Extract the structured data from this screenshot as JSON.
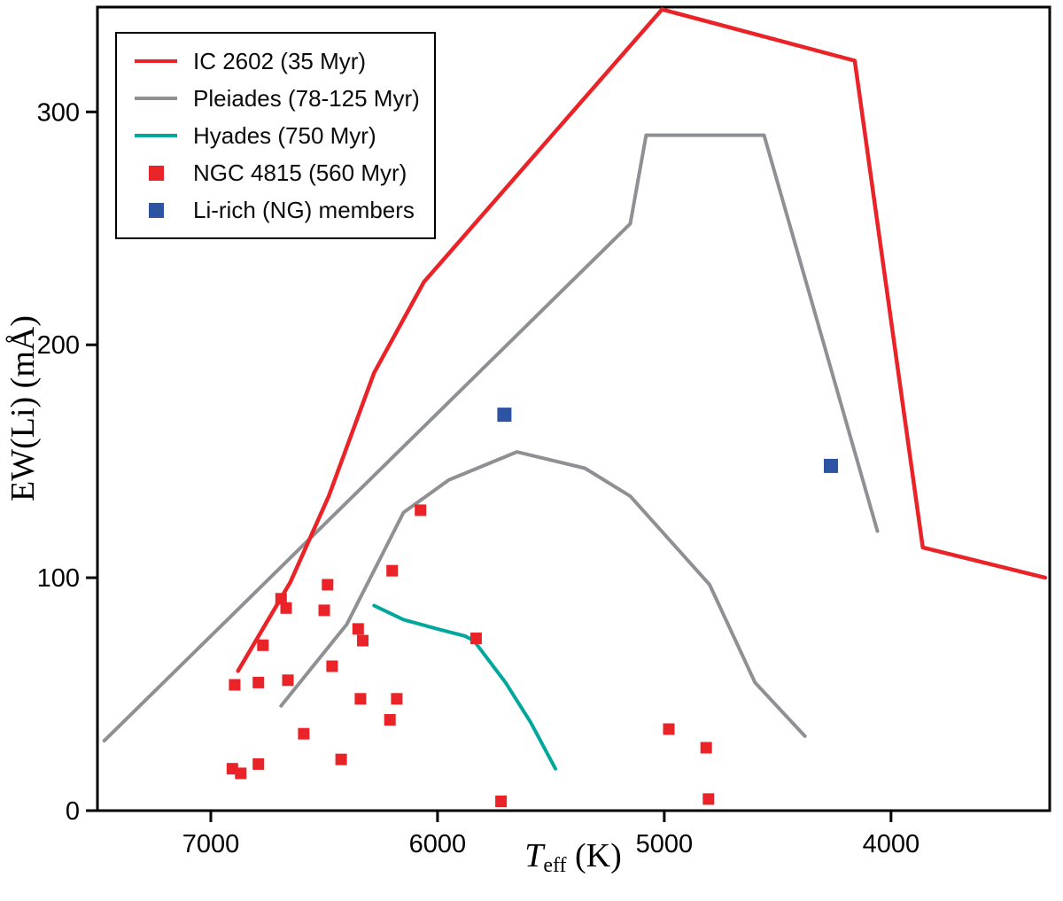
{
  "chart_data": {
    "type": "line+scatter",
    "title": "",
    "xlabel": {
      "symbol": "T",
      "subscript": "eff",
      "unit": "(K)"
    },
    "ylabel": "EW(Li) (mÅ)",
    "x_domain": [
      7500,
      3300
    ],
    "x_axis_reversed": true,
    "y_domain": [
      0,
      345
    ],
    "x_ticks": [
      "7000",
      "6000",
      "5000",
      "4000"
    ],
    "y_ticks": [
      "0",
      "100",
      "200",
      "300"
    ],
    "grid": false,
    "legend_position": "top-left",
    "axis_color": "#000000",
    "series": [
      {
        "id": "ic2602",
        "name": "IC 2602 (35 Myr)",
        "type": "line",
        "color": "#ea2328",
        "segments": [
          [
            [
              6880,
              60
            ],
            [
              6650,
              98
            ],
            [
              6480,
              135
            ],
            [
              6280,
              188
            ],
            [
              6060,
              227
            ],
            [
              5010,
              344
            ],
            [
              4160,
              322
            ],
            [
              3860,
              113
            ],
            [
              3320,
              100
            ]
          ]
        ]
      },
      {
        "id": "pleiades",
        "name": "Pleiades (78-125 Myr)",
        "type": "line",
        "color": "#8e9093",
        "segments": [
          [
            [
              7470,
              30
            ],
            [
              5150,
              252
            ],
            [
              5080,
              290
            ],
            [
              4560,
              290
            ],
            [
              4060,
              120
            ]
          ],
          [
            [
              6690,
              45
            ],
            [
              6400,
              80
            ],
            [
              6150,
              128
            ],
            [
              5950,
              142
            ],
            [
              5650,
              154
            ],
            [
              5350,
              147
            ],
            [
              5150,
              135
            ],
            [
              4800,
              97
            ],
            [
              4600,
              55
            ],
            [
              4380,
              32
            ]
          ]
        ]
      },
      {
        "id": "hyades",
        "name": "Hyades (750 Myr)",
        "type": "line",
        "color": "#00a79c",
        "segments": [
          [
            [
              6280,
              88
            ],
            [
              6150,
              82
            ],
            [
              6000,
              78
            ],
            [
              5880,
              75
            ],
            [
              5840,
              73
            ],
            [
              5700,
              55
            ],
            [
              5590,
              38
            ],
            [
              5480,
              18
            ]
          ]
        ]
      },
      {
        "id": "ngc4815",
        "name": "NGC 4815 (560 Myr)",
        "type": "scatter",
        "marker": "square",
        "marker_size": 13,
        "color": "#ea2328",
        "points": [
          [
            6895,
            54
          ],
          [
            6905,
            18
          ],
          [
            6868,
            16
          ],
          [
            6790,
            20
          ],
          [
            6790,
            55
          ],
          [
            6770,
            71
          ],
          [
            6690,
            91
          ],
          [
            6668,
            87
          ],
          [
            6660,
            56
          ],
          [
            6590,
            33
          ],
          [
            6500,
            86
          ],
          [
            6485,
            97
          ],
          [
            6465,
            62
          ],
          [
            6425,
            22
          ],
          [
            6350,
            78
          ],
          [
            6330,
            73
          ],
          [
            6340,
            48
          ],
          [
            6200,
            103
          ],
          [
            6210,
            39
          ],
          [
            6180,
            48
          ],
          [
            6075,
            129
          ],
          [
            5830,
            74
          ],
          [
            5720,
            4
          ],
          [
            4980,
            35
          ],
          [
            4815,
            27
          ],
          [
            4805,
            5
          ]
        ]
      },
      {
        "id": "lirich",
        "name": "Li-rich (NG) members",
        "type": "scatter",
        "marker": "square",
        "marker_size": 16,
        "color": "#2d53a3",
        "points": [
          [
            5705,
            170
          ],
          [
            4265,
            148
          ]
        ]
      }
    ]
  }
}
